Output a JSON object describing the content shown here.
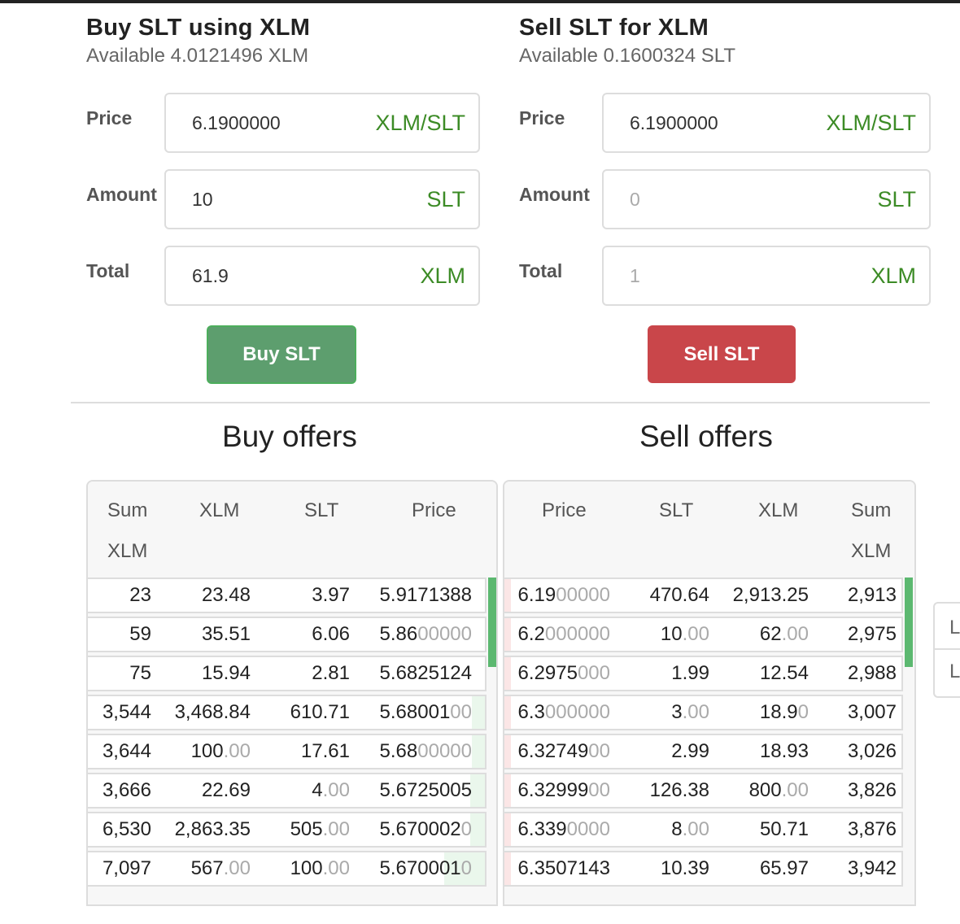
{
  "buy_form": {
    "title": "Buy SLT using XLM",
    "available": "Available 4.0121496 XLM",
    "price": {
      "label": "Price",
      "value": "6.1900000",
      "unit": "XLM/SLT"
    },
    "amount": {
      "label": "Amount",
      "value": "10",
      "unit": "SLT"
    },
    "total": {
      "label": "Total",
      "value": "61.9",
      "unit": "XLM"
    },
    "button_label": "Buy SLT"
  },
  "sell_form": {
    "title": "Sell SLT for XLM",
    "available": "Available 0.1600324 SLT",
    "price": {
      "label": "Price",
      "value": "6.1900000",
      "unit": "XLM/SLT"
    },
    "amount": {
      "label": "Amount",
      "placeholder": "0",
      "unit": "SLT"
    },
    "total": {
      "label": "Total",
      "placeholder": "1",
      "unit": "XLM"
    },
    "button_label": "Sell SLT"
  },
  "buy_offers": {
    "title": "Buy offers",
    "headers": {
      "sum_a": "Sum",
      "sum_b": "XLM",
      "xlm": "XLM",
      "slt": "SLT",
      "price": "Price"
    },
    "rows": [
      {
        "sum": "23",
        "xlm": "23.48",
        "xlm_dim": "",
        "slt": "3.97",
        "slt_dim": "",
        "price": "5.9171388",
        "price_dim": ""
      },
      {
        "sum": "59",
        "xlm": "35.51",
        "xlm_dim": "",
        "slt": "6.06",
        "slt_dim": "",
        "price": "5.86",
        "price_dim": "00000"
      },
      {
        "sum": "75",
        "xlm": "15.94",
        "xlm_dim": "",
        "slt": "2.81",
        "slt_dim": "",
        "price": "5.6825124",
        "price_dim": ""
      },
      {
        "sum": "3,544",
        "xlm": "3,468.84",
        "xlm_dim": "",
        "slt": "610.71",
        "slt_dim": "",
        "price": "5.68001",
        "price_dim": "00"
      },
      {
        "sum": "3,644",
        "xlm": "100",
        "xlm_dim": ".00",
        "slt": "17.61",
        "slt_dim": "",
        "price": "5.68",
        "price_dim": "00000"
      },
      {
        "sum": "3,666",
        "xlm": "22.69",
        "xlm_dim": "",
        "slt": "4",
        "slt_dim": ".00",
        "price": "5.6725005",
        "price_dim": ""
      },
      {
        "sum": "6,530",
        "xlm": "2,863.35",
        "xlm_dim": "",
        "slt": "505",
        "slt_dim": ".00",
        "price": "5.670002",
        "price_dim": "0"
      },
      {
        "sum": "7,097",
        "xlm": "567",
        "xlm_dim": ".00",
        "slt": "100",
        "slt_dim": ".00",
        "price": "5.670001",
        "price_dim": "0"
      }
    ]
  },
  "sell_offers": {
    "title": "Sell offers",
    "headers": {
      "price": "Price",
      "slt": "SLT",
      "xlm": "XLM",
      "sum_a": "Sum",
      "sum_b": "XLM"
    },
    "rows": [
      {
        "price": "6.19",
        "price_dim": "00000",
        "slt": "470.64",
        "slt_dim": "",
        "xlm": "2,913.25",
        "xlm_dim": "",
        "sum": "2,913"
      },
      {
        "price": "6.2",
        "price_dim": "000000",
        "slt": "10",
        "slt_dim": ".00",
        "xlm": "62",
        "xlm_dim": ".00",
        "sum": "2,975"
      },
      {
        "price": "6.2975",
        "price_dim": "000",
        "slt": "1.99",
        "slt_dim": "",
        "xlm": "12.54",
        "xlm_dim": "",
        "sum": "2,988"
      },
      {
        "price": "6.3",
        "price_dim": "000000",
        "slt": "3",
        "slt_dim": ".00",
        "xlm": "18.9",
        "xlm_dim": "0",
        "sum": "3,007"
      },
      {
        "price": "6.32749",
        "price_dim": "00",
        "slt": "2.99",
        "slt_dim": "",
        "xlm": "18.93",
        "xlm_dim": "",
        "sum": "3,026"
      },
      {
        "price": "6.32999",
        "price_dim": "00",
        "slt": "126.38",
        "slt_dim": "",
        "xlm": "800",
        "xlm_dim": ".00",
        "sum": "3,826"
      },
      {
        "price": "6.339",
        "price_dim": "0000",
        "slt": "8",
        "slt_dim": ".00",
        "xlm": "50.71",
        "xlm_dim": "",
        "sum": "3,876"
      },
      {
        "price": "6.3507143",
        "price_dim": "",
        "slt": "10.39",
        "slt_dim": "",
        "xlm": "65.97",
        "xlm_dim": "",
        "sum": "3,942"
      }
    ]
  },
  "side_widget": {
    "items": [
      "L",
      "L"
    ]
  },
  "colors": {
    "buy_button": "#5d9e6e",
    "sell_button": "#c9464a",
    "unit_text": "#3c8b26",
    "scroll_thumb": "#5cb870"
  }
}
